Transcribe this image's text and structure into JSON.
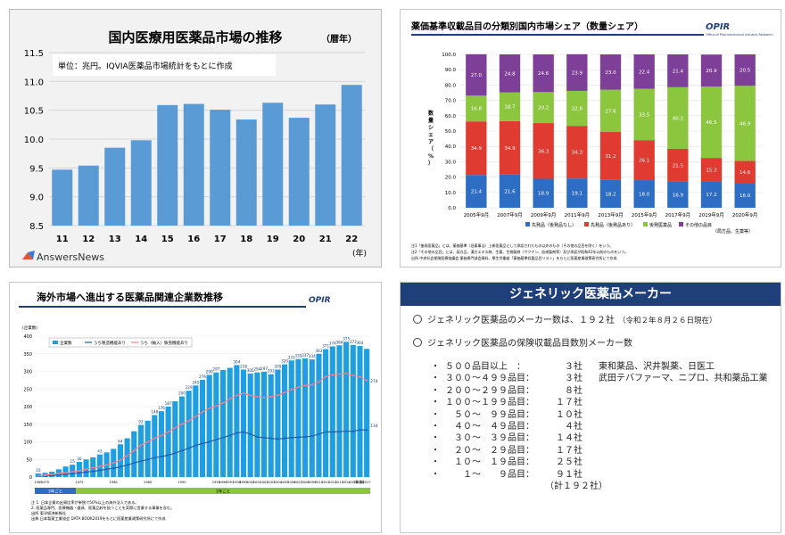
{
  "chart_data": [
    {
      "type": "bar",
      "title": "国内医療用医薬品市場の推移",
      "title_suffix": "（暦年）",
      "note": "単位：兆円。IQVIA医薬品市場統計をもとに作成",
      "categories": [
        "11",
        "12",
        "13",
        "14",
        "15",
        "16",
        "17",
        "18",
        "19",
        "20",
        "21",
        "22"
      ],
      "values": [
        9.47,
        9.54,
        9.85,
        9.98,
        10.59,
        10.61,
        10.51,
        10.34,
        10.63,
        10.37,
        10.6,
        10.94
      ],
      "ylim": [
        8.5,
        11.5
      ],
      "yticks": [
        "11.5",
        "11.0",
        "10.5",
        "10.0",
        "9.5",
        "9.0",
        "8.5"
      ],
      "xunit": "(年)",
      "logo": "AnswersNews",
      "bar_color": "#5b9bd5",
      "grid": true
    },
    {
      "type": "bar",
      "stacked": true,
      "title": "薬価基準収載品目の分類別国内市場シェア（数量シェア）",
      "logo": "OPIR",
      "logo_sub": "Office of Pharmaceutical Industry Research",
      "ylabel": "数量シェア（%）",
      "yticks": [
        "100.0",
        "90.0",
        "80.0",
        "70.0",
        "60.0",
        "50.0",
        "40.0",
        "30.0",
        "20.0",
        "10.0",
        "0.0"
      ],
      "ylim": [
        0,
        100
      ],
      "categories": [
        "2005年9月",
        "2007年9月",
        "2009年9月",
        "2011年9月",
        "2013年9月",
        "2015年9月",
        "2017年9月",
        "2019年9月",
        "2020年9月"
      ],
      "series": [
        {
          "name": "先発品（後発品なし）",
          "color": "#2e6dc4",
          "values": [
            21.4,
            21.6,
            18.9,
            19.1,
            18.2,
            18.0,
            16.9,
            17.2,
            16.0
          ]
        },
        {
          "name": "先発品（後発品あり）",
          "color": "#e03b30",
          "values": [
            34.9,
            34.9,
            36.3,
            34.3,
            31.2,
            26.1,
            21.5,
            15.3,
            14.6
          ]
        },
        {
          "name": "後発医薬品",
          "color": "#8cc63f",
          "values": [
            16.8,
            18.7,
            20.2,
            22.8,
            27.6,
            33.5,
            40.2,
            46.5,
            48.9
          ]
        },
        {
          "name": "その他の品目",
          "color": "#7e3f98",
          "values": [
            27.0,
            24.8,
            24.6,
            23.9,
            23.0,
            22.4,
            21.4,
            20.9,
            20.5
          ]
        }
      ],
      "source_note": "（局方品、生薬等）",
      "footnotes": [
        "注1「後発医薬品」とは、薬価基準（旧薬事法）上新医薬品として承認されたもの以外のもの（その他の品目を除く）をいう。",
        "注2「その他の品目」とは、局方品、漢方エキス剤、生薬、生物製剤（ワクチン、血液製剤等）及び承認が昭和42年以前のものをいう。",
        "出所 中央社会保険医療協議会 薬価専門部会資料、厚生労働省「薬価基準収載品目リスト」をもとに医薬産業政策研究所にて作成"
      ]
    },
    {
      "type": "bar",
      "title": "海外市場へ進出する医薬品関連企業数推移",
      "logo": "OPIR",
      "yunit": "(企業数)",
      "xunit": "(年度)",
      "yticks": [
        "400",
        "350",
        "300",
        "250",
        "200",
        "150",
        "100",
        "50",
        "0"
      ],
      "ylim": [
        0,
        400
      ],
      "categories": [
        "1969",
        "1970",
        "1971",
        "1972",
        "1973",
        "1974",
        "1975",
        "1976",
        "1977",
        "1978",
        "1979",
        "1980",
        "1981",
        "1982",
        "1983",
        "1984",
        "1985",
        "1986",
        "1987",
        "1988",
        "1989",
        "1990",
        "1991",
        "1992",
        "1993",
        "1994",
        "1995",
        "1996",
        "1997",
        "1998",
        "1999",
        "2000",
        "2001",
        "2002",
        "2003",
        "2004",
        "2005",
        "2006",
        "2007",
        "2008",
        "2009",
        "2010",
        "2011",
        "2012",
        "2013",
        "2014",
        "2015",
        "2016",
        "2017"
      ],
      "xticks": [
        "1969",
        "1970",
        "1975",
        "1980",
        "1985",
        "1990",
        "1995",
        "1996",
        "1997",
        "1998",
        "1999",
        "2000",
        "2001",
        "2002",
        "2003",
        "2004",
        "2005",
        "2006",
        "2007",
        "2008",
        "2009",
        "2010",
        "2011",
        "2012",
        "2013",
        "2014",
        "2015",
        "2016",
        "2017"
      ],
      "series": [
        {
          "name": "企業数",
          "type": "bar",
          "color": "#1f9fe0",
          "values": [
            10,
            12,
            15,
            22,
            30,
            35,
            43,
            50,
            56,
            64,
            70,
            80,
            93,
            110,
            130,
            148,
            160,
            176,
            187,
            200,
            215,
            229,
            245,
            260,
            276,
            290,
            297,
            304,
            310,
            318,
            305,
            294,
            297,
            299,
            292,
            305,
            320,
            331,
            335,
            337,
            334,
            350,
            363,
            371,
            374,
            384,
            375,
            372,
            364
          ]
        },
        {
          "name": "うち製造機能あり",
          "type": "line",
          "color": "#1f5fb0",
          "values": [
            2,
            3,
            4,
            6,
            8,
            10,
            12,
            14,
            16,
            19,
            22,
            25,
            29,
            34,
            40,
            45,
            50,
            55,
            58,
            62,
            68,
            75,
            82,
            90,
            95,
            100,
            106,
            112,
            118,
            125,
            128,
            122,
            114,
            112,
            110,
            108,
            110,
            112,
            113,
            114,
            116,
            122,
            128,
            128,
            129,
            130,
            130,
            134,
            134
          ]
        },
        {
          "name": "うち（輸入）販売機能あり",
          "type": "line",
          "color": "#ff7a8a",
          "values": [
            3,
            5,
            7,
            10,
            12,
            15,
            18,
            22,
            26,
            30,
            35,
            40,
            48,
            60,
            75,
            90,
            100,
            110,
            118,
            128,
            140,
            150,
            160,
            172,
            185,
            195,
            202,
            210,
            222,
            232,
            238,
            232,
            228,
            226,
            228,
            232,
            240,
            248,
            255,
            260,
            262,
            270,
            285,
            290,
            292,
            294,
            288,
            285,
            274
          ]
        }
      ],
      "labels": [
        "10",
        "15",
        "30",
        "43",
        "64",
        "93",
        "148",
        "176",
        "187",
        "200",
        "229",
        "245",
        "276",
        "290",
        "297",
        "304",
        "318",
        "305",
        "294",
        "297",
        "292",
        "305",
        "320",
        "331",
        "335",
        "337",
        "334",
        "363",
        "371",
        "374",
        "384",
        "375",
        "372",
        "364",
        "274",
        "134"
      ],
      "periods": [
        "3年ごと",
        "1年ごと"
      ],
      "footnotes": [
        "注 1. 日本企業の出資比率が単独で50%以上の海外法人である。",
        "2. 医薬品専門、医療機器・器具、医薬品卸を扱うことを実際に営業する事業を含む。",
        "出所 東洋経済新報社",
        "出典 日本製薬工業協会 DATA BOOK2019をもとに医薬産業政策研究所にて作成"
      ]
    }
  ],
  "generic": {
    "title": "ジェネリック医薬品メーカー",
    "line1": "ジェネリック医薬品のメーカー数は、１９２社",
    "line1_note": "（令和２年８月２６日現在）",
    "line2": "ジェネリック医薬品の保険収載品目数別メーカー数",
    "rows": [
      {
        "range": "５００品目以上　：",
        "count": "３社",
        "makers": "東和薬品、沢井製薬、日医工"
      },
      {
        "range": "３００～４９９品目：",
        "count": "３社",
        "makers": "武田テバファーマ、ニプロ、共和薬品工業"
      },
      {
        "range": "２００～２９９品目：",
        "count": "８社",
        "makers": ""
      },
      {
        "range": "１００～１９９品目：",
        "count": "１７社",
        "makers": ""
      },
      {
        "range": "　５０～　９９品目：",
        "count": "１０社",
        "makers": ""
      },
      {
        "range": "　４０～　４９品目：",
        "count": "４社",
        "makers": ""
      },
      {
        "range": "　３０～　３９品目：",
        "count": "１４社",
        "makers": ""
      },
      {
        "range": "　２０～　２９品目：",
        "count": "１７社",
        "makers": ""
      },
      {
        "range": "　１０～　１９品目：",
        "count": "２５社",
        "makers": ""
      },
      {
        "range": "　　１～　　９品目：",
        "count": "９１社",
        "makers": ""
      }
    ],
    "total": "（計１９２社）"
  }
}
